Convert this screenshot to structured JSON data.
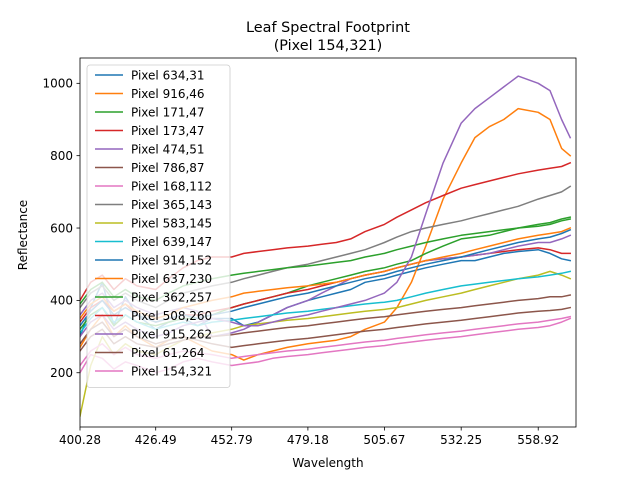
{
  "chart_data": {
    "type": "line",
    "title": "Leaf Spectral Footprint",
    "subtitle": "(Pixel 154,321)",
    "xlabel": "Wavelength",
    "ylabel": "Reflectance",
    "x_range": [
      400.28,
      572
    ],
    "y_range": [
      50,
      1070
    ],
    "x_ticks": [
      {
        "value": 400.28,
        "label": "400.28"
      },
      {
        "value": 426.49,
        "label": "426.49"
      },
      {
        "value": 452.79,
        "label": "452.79"
      },
      {
        "value": 479.18,
        "label": "479.18"
      },
      {
        "value": 505.67,
        "label": "505.67"
      },
      {
        "value": 532.25,
        "label": "532.25"
      },
      {
        "value": 558.92,
        "label": "558.92"
      }
    ],
    "y_ticks": [
      {
        "value": 200,
        "label": "200"
      },
      {
        "value": 400,
        "label": "400"
      },
      {
        "value": 600,
        "label": "600"
      },
      {
        "value": 800,
        "label": "800"
      },
      {
        "value": 1000,
        "label": "1000"
      }
    ],
    "grid": false,
    "legend_position": "upper-left",
    "x": [
      400.28,
      404.0,
      408.0,
      412.0,
      416.0,
      420.0,
      426.49,
      431.0,
      436.0,
      441.0,
      446.0,
      452.79,
      457.0,
      462.0,
      467.0,
      472.0,
      479.18,
      484.0,
      489.0,
      494.0,
      499.0,
      505.67,
      510.0,
      515.0,
      520.0,
      526.0,
      532.25,
      537.0,
      542.0,
      547.0,
      552.0,
      558.92,
      563.0,
      567.0,
      570.0
    ],
    "series": [
      {
        "name": "Pixel 634,31",
        "color": "#1f77b4",
        "values": [
          300,
          380,
          450,
          330,
          410,
          360,
          320,
          340,
          350,
          330,
          350,
          350,
          330,
          340,
          360,
          380,
          400,
          410,
          420,
          430,
          450,
          460,
          470,
          480,
          490,
          500,
          510,
          510,
          520,
          530,
          535,
          540,
          530,
          515,
          510
        ]
      },
      {
        "name": "Pixel 916,46",
        "color": "#ff7f0e",
        "values": [
          270,
          320,
          360,
          300,
          330,
          300,
          270,
          290,
          300,
          280,
          260,
          250,
          235,
          250,
          260,
          270,
          280,
          285,
          290,
          300,
          320,
          340,
          380,
          450,
          550,
          680,
          780,
          850,
          880,
          900,
          930,
          920,
          900,
          820,
          800
        ]
      },
      {
        "name": "Pixel 171,47",
        "color": "#2ca02c",
        "values": [
          320,
          360,
          380,
          330,
          360,
          340,
          330,
          340,
          350,
          350,
          360,
          380,
          390,
          400,
          410,
          420,
          440,
          450,
          460,
          470,
          480,
          490,
          500,
          510,
          530,
          550,
          570,
          575,
          580,
          590,
          600,
          610,
          615,
          625,
          630
        ]
      },
      {
        "name": "Pixel 173,47",
        "color": "#d62728",
        "values": [
          340,
          380,
          400,
          370,
          390,
          360,
          340,
          350,
          360,
          360,
          370,
          380,
          390,
          400,
          410,
          420,
          430,
          440,
          450,
          460,
          470,
          480,
          490,
          500,
          510,
          515,
          520,
          525,
          530,
          535,
          540,
          545,
          540,
          530,
          530
        ]
      },
      {
        "name": "Pixel 474,51",
        "color": "#9467bd",
        "values": [
          360,
          400,
          420,
          380,
          400,
          380,
          360,
          370,
          380,
          370,
          300,
          310,
          320,
          340,
          360,
          380,
          400,
          420,
          440,
          460,
          470,
          480,
          490,
          500,
          510,
          515,
          520,
          525,
          530,
          540,
          550,
          560,
          560,
          570,
          580
        ]
      },
      {
        "name": "Pixel 786,87",
        "color": "#8c564b",
        "values": [
          280,
          320,
          340,
          300,
          320,
          300,
          280,
          290,
          300,
          290,
          280,
          270,
          275,
          280,
          285,
          290,
          295,
          300,
          305,
          310,
          315,
          320,
          325,
          330,
          335,
          340,
          345,
          350,
          355,
          360,
          365,
          370,
          372,
          375,
          380
        ]
      },
      {
        "name": "Pixel 168,112",
        "color": "#e377c2",
        "values": [
          200,
          250,
          240,
          210,
          230,
          220,
          200,
          210,
          230,
          240,
          230,
          220,
          225,
          230,
          240,
          245,
          250,
          255,
          260,
          265,
          270,
          275,
          280,
          285,
          290,
          295,
          300,
          305,
          310,
          315,
          320,
          325,
          330,
          340,
          350
        ]
      },
      {
        "name": "Pixel 365,143",
        "color": "#7f7f7f",
        "values": [
          380,
          420,
          440,
          400,
          420,
          400,
          380,
          400,
          420,
          430,
          440,
          450,
          460,
          470,
          480,
          490,
          500,
          510,
          520,
          530,
          540,
          560,
          575,
          590,
          600,
          610,
          620,
          630,
          640,
          650,
          660,
          680,
          690,
          700,
          715
        ]
      },
      {
        "name": "Pixel 583,145",
        "color": "#bcbd22",
        "values": [
          80,
          220,
          300,
          250,
          280,
          260,
          250,
          270,
          290,
          300,
          310,
          320,
          330,
          335,
          340,
          345,
          350,
          355,
          360,
          365,
          370,
          375,
          380,
          390,
          400,
          410,
          420,
          430,
          440,
          450,
          460,
          470,
          480,
          470,
          460
        ]
      },
      {
        "name": "Pixel 639,147",
        "color": "#17becf",
        "values": [
          310,
          350,
          380,
          340,
          360,
          340,
          320,
          330,
          340,
          330,
          340,
          345,
          350,
          355,
          360,
          365,
          370,
          375,
          380,
          385,
          390,
          395,
          400,
          410,
          420,
          430,
          440,
          445,
          450,
          455,
          460,
          465,
          470,
          475,
          480
        ]
      },
      {
        "name": "Pixel 914,152",
        "color": "#1f77b4",
        "values": [
          330,
          370,
          400,
          360,
          380,
          360,
          340,
          350,
          360,
          350,
          360,
          370,
          380,
          390,
          400,
          410,
          420,
          430,
          440,
          450,
          460,
          470,
          480,
          490,
          500,
          510,
          520,
          530,
          540,
          550,
          560,
          570,
          575,
          585,
          595
        ]
      },
      {
        "name": "Pixel 637,230",
        "color": "#ff7f0e",
        "values": [
          350,
          390,
          410,
          370,
          390,
          370,
          350,
          360,
          380,
          390,
          400,
          410,
          420,
          425,
          430,
          435,
          440,
          445,
          450,
          460,
          470,
          480,
          490,
          500,
          510,
          520,
          530,
          540,
          550,
          560,
          570,
          580,
          585,
          590,
          600
        ]
      },
      {
        "name": "Pixel 362,257",
        "color": "#2ca02c",
        "values": [
          390,
          430,
          450,
          410,
          430,
          410,
          400,
          420,
          440,
          450,
          460,
          470,
          475,
          480,
          485,
          490,
          495,
          500,
          505,
          510,
          520,
          530,
          540,
          550,
          560,
          570,
          580,
          585,
          590,
          595,
          600,
          605,
          610,
          620,
          625
        ]
      },
      {
        "name": "Pixel 508,260",
        "color": "#d62728",
        "values": [
          400,
          450,
          470,
          430,
          460,
          440,
          430,
          460,
          490,
          510,
          520,
          520,
          530,
          535,
          540,
          545,
          550,
          555,
          560,
          570,
          590,
          610,
          630,
          650,
          670,
          690,
          710,
          720,
          730,
          740,
          750,
          760,
          765,
          770,
          780
        ]
      },
      {
        "name": "Pixel 915,262",
        "color": "#9467bd",
        "values": [
          300,
          340,
          360,
          320,
          340,
          320,
          300,
          310,
          330,
          340,
          350,
          340,
          330,
          330,
          340,
          350,
          360,
          370,
          380,
          390,
          400,
          420,
          450,
          520,
          640,
          780,
          890,
          930,
          960,
          990,
          1020,
          1000,
          980,
          900,
          850
        ]
      },
      {
        "name": "Pixel 61,264",
        "color": "#8c564b",
        "values": [
          260,
          300,
          320,
          280,
          300,
          280,
          270,
          280,
          290,
          300,
          300,
          305,
          310,
          315,
          320,
          325,
          330,
          335,
          340,
          345,
          350,
          355,
          360,
          365,
          370,
          375,
          380,
          385,
          390,
          395,
          400,
          405,
          410,
          410,
          415
        ]
      },
      {
        "name": "Pixel 154,321",
        "color": "#e377c2",
        "values": [
          220,
          260,
          280,
          250,
          270,
          250,
          240,
          250,
          260,
          255,
          250,
          240,
          245,
          250,
          255,
          260,
          265,
          270,
          275,
          280,
          285,
          290,
          295,
          300,
          305,
          310,
          315,
          320,
          325,
          330,
          335,
          340,
          345,
          350,
          355
        ]
      }
    ]
  }
}
